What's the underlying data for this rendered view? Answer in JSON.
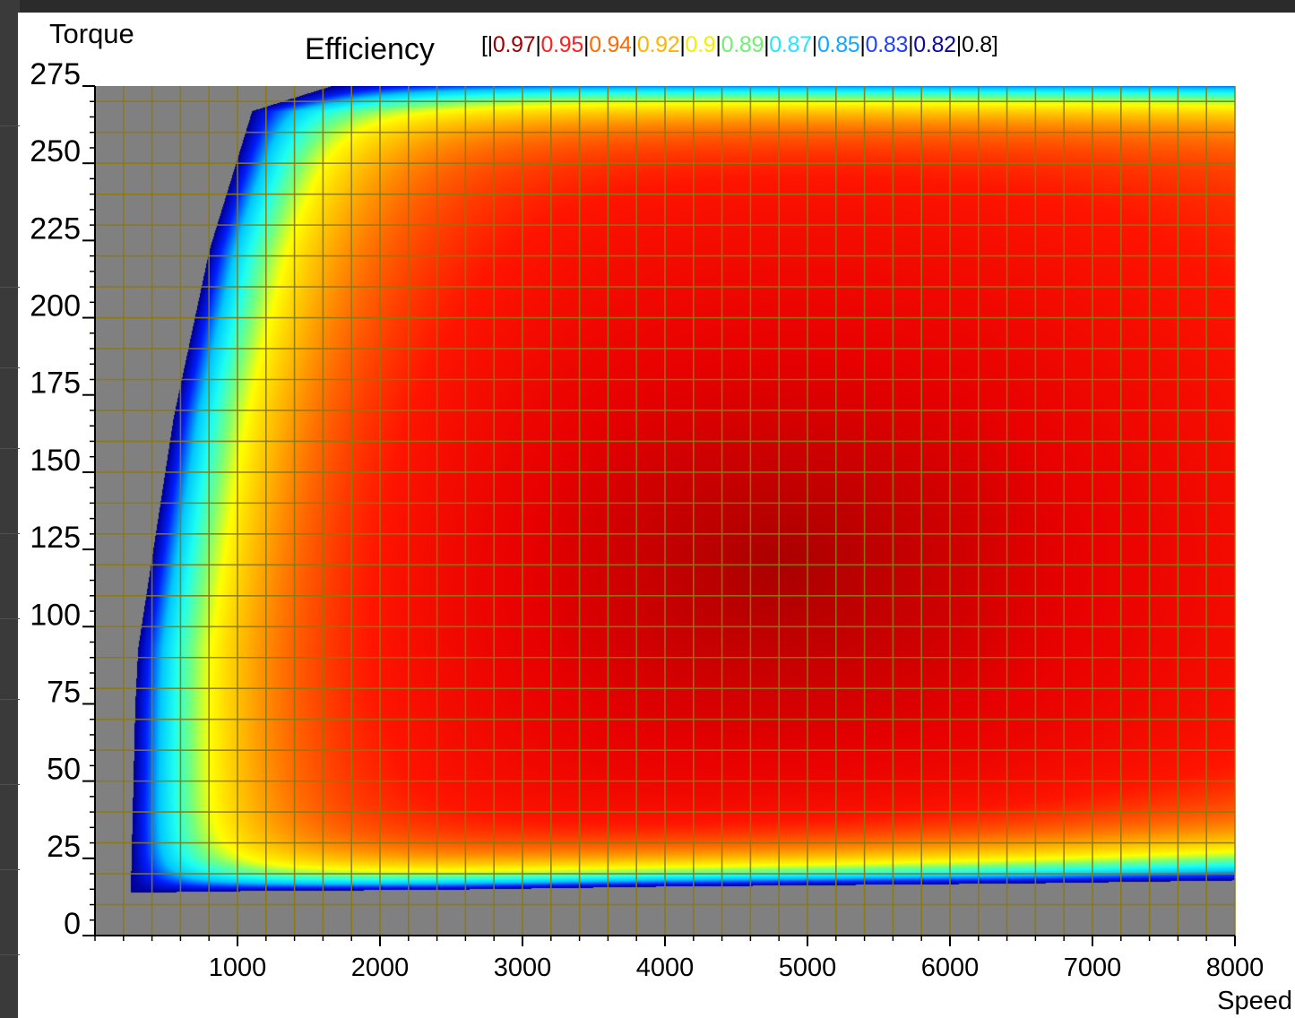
{
  "background_panel": {
    "labels": [
      "e",
      "e",
      "o",
      "E",
      "ey",
      "ey",
      "u",
      "N",
      "N",
      "M",
      "ar"
    ]
  },
  "chart_data": {
    "type": "heatmap",
    "title": "Efficiency",
    "xlabel": "Speed",
    "ylabel": "Torque",
    "xlim": [
      0,
      8000
    ],
    "ylim": [
      0,
      275
    ],
    "x_ticks": [
      1000,
      2000,
      3000,
      4000,
      5000,
      6000,
      7000,
      8000
    ],
    "y_ticks": [
      0,
      25,
      50,
      75,
      100,
      125,
      150,
      175,
      200,
      225,
      250,
      275
    ],
    "x_grid_step": 200,
    "y_grid_step": 10,
    "grid": true,
    "legend_position": "top",
    "colorbar": [
      {
        "value": "0.97",
        "color": "#9b0000"
      },
      {
        "value": "0.95",
        "color": "#ff2020"
      },
      {
        "value": "0.94",
        "color": "#ff6a00"
      },
      {
        "value": "0.92",
        "color": "#ffb400"
      },
      {
        "value": "0.9",
        "color": "#f0f000"
      },
      {
        "value": "0.89",
        "color": "#70f070"
      },
      {
        "value": "0.87",
        "color": "#20e8ff"
      },
      {
        "value": "0.85",
        "color": "#10a8ff"
      },
      {
        "value": "0.83",
        "color": "#2040ff"
      },
      {
        "value": "0.82",
        "color": "#0a0aa0"
      },
      {
        "value": "0.8",
        "color": "#000000"
      }
    ],
    "peak_efficiency_region": {
      "speed": [
        3500,
        6500
      ],
      "torque": [
        80,
        160
      ],
      "efficiency": 0.97
    },
    "operating_region_boundary": {
      "upper_left_edge": [
        {
          "speed": 250,
          "torque": 18
        },
        {
          "speed": 280,
          "torque": 75
        },
        {
          "speed": 300,
          "torque": 93
        },
        {
          "speed": 550,
          "torque": 168
        },
        {
          "speed": 800,
          "torque": 222
        },
        {
          "speed": 1100,
          "torque": 267
        },
        {
          "speed": 1650,
          "torque": 275
        }
      ],
      "lower_edge": [
        {
          "speed": 250,
          "torque": 14
        },
        {
          "speed": 1000,
          "torque": 14.5
        },
        {
          "speed": 2500,
          "torque": 15
        },
        {
          "speed": 4000,
          "torque": 16
        },
        {
          "speed": 6500,
          "torque": 17
        },
        {
          "speed": 8000,
          "torque": 18
        }
      ]
    }
  }
}
